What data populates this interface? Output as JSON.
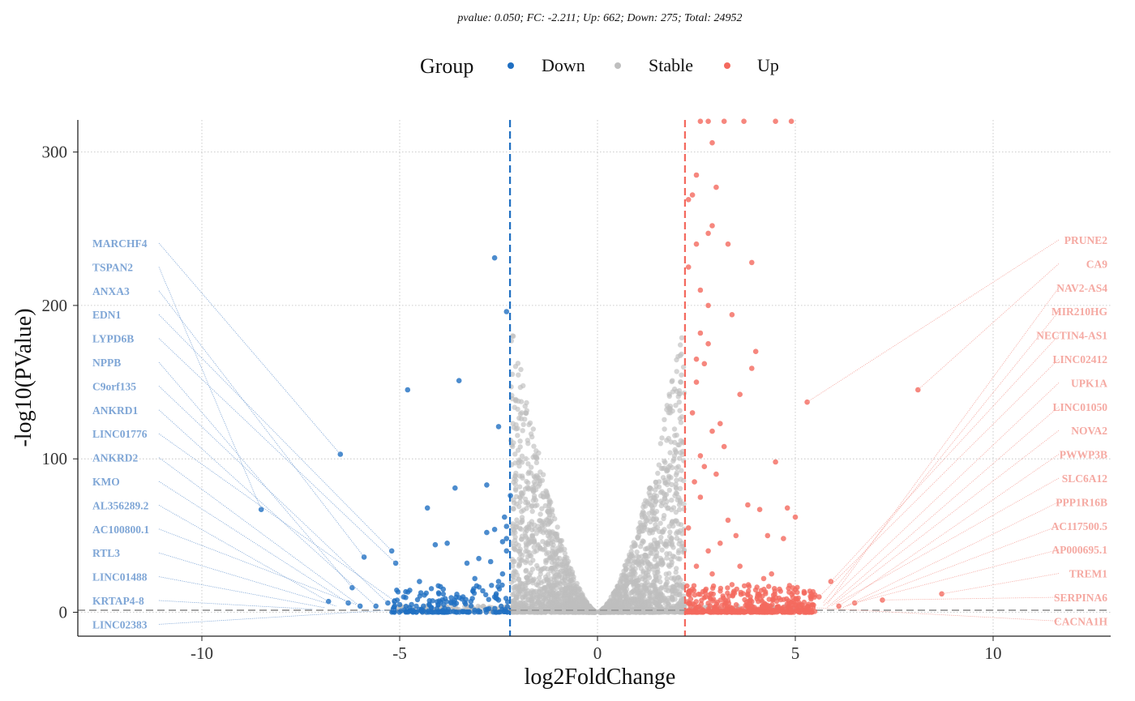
{
  "chart_data": {
    "type": "scatter",
    "subtitle": "pvalue:  0.050; FC: -2.211; Up: 662; Down: 275; Total: 24952",
    "xlabel": "log2FoldChange",
    "ylabel": "-log10(PValue)",
    "xlim": [
      -13.1,
      13.0
    ],
    "ylim": [
      -15,
      320
    ],
    "xticks": [
      -10,
      -5,
      0,
      5,
      10
    ],
    "xtick_labels": [
      "-10",
      "-5",
      "0",
      "5",
      "10"
    ],
    "yticks": [
      0,
      100,
      200,
      300
    ],
    "ytick_labels": [
      "0",
      "100",
      "200",
      "300"
    ],
    "grid": true,
    "legend": {
      "title": "Group",
      "position": "top",
      "entries": [
        {
          "name": "Down",
          "color": "#1f6fc2"
        },
        {
          "name": "Stable",
          "color": "#bfbfbf"
        },
        {
          "name": "Up",
          "color": "#f4695e"
        }
      ]
    },
    "thresholds": {
      "fc_left": -2.211,
      "fc_right": 2.211,
      "fc_line_colors": {
        "left": "#1f6fc2",
        "right": "#f4695e"
      },
      "pvalue_line": 1.301
    },
    "counts": {
      "up": 662,
      "down": 275,
      "total": 24952
    },
    "series": [
      {
        "name": "Down",
        "color": "#1f6fc2",
        "points": [
          [
            -6.5,
            103
          ],
          [
            -8.5,
            67
          ],
          [
            -3.5,
            151
          ],
          [
            -4.8,
            145
          ],
          [
            -2.6,
            231
          ],
          [
            -2.3,
            196
          ],
          [
            -2.5,
            121
          ],
          [
            -3.6,
            81
          ],
          [
            -2.8,
            83
          ],
          [
            -4.3,
            68
          ],
          [
            -5.2,
            40
          ],
          [
            -5.1,
            32
          ],
          [
            -5.9,
            36
          ],
          [
            -6.2,
            16
          ],
          [
            -6.8,
            7
          ],
          [
            -6.3,
            6
          ],
          [
            -3.8,
            45
          ],
          [
            -4.1,
            44
          ],
          [
            -3.3,
            32
          ],
          [
            -2.8,
            52
          ],
          [
            -2.6,
            54
          ],
          [
            -2.4,
            46
          ],
          [
            -2.2,
            76
          ],
          [
            -4.5,
            20
          ],
          [
            -4.9,
            10
          ],
          [
            -3.9,
            15
          ],
          [
            -3.0,
            35
          ],
          [
            -2.7,
            33
          ],
          [
            -2.35,
            62
          ],
          [
            -2.3,
            48
          ],
          [
            -2.3,
            56
          ],
          [
            -5.3,
            6
          ],
          [
            -5.6,
            4
          ],
          [
            -4.7,
            5
          ],
          [
            -4.2,
            3
          ],
          [
            -3.4,
            10
          ],
          [
            -3.1,
            22
          ],
          [
            -2.9,
            14
          ],
          [
            -2.5,
            20
          ],
          [
            -2.6,
            10
          ],
          [
            -6.0,
            4
          ],
          [
            -5.0,
            5
          ],
          [
            -4.4,
            4
          ],
          [
            -3.7,
            6
          ],
          [
            -3.2,
            7
          ],
          [
            -2.4,
            25
          ],
          [
            -2.3,
            40
          ],
          [
            -2.5,
            8
          ]
        ]
      },
      {
        "name": "Up",
        "color": "#f4695e",
        "points": [
          [
            8.1,
            145
          ],
          [
            5.3,
            137
          ],
          [
            8.7,
            12
          ],
          [
            7.2,
            8
          ],
          [
            6.5,
            6
          ],
          [
            5.9,
            20
          ],
          [
            5.6,
            10
          ],
          [
            6.1,
            4
          ],
          [
            3.9,
            228
          ],
          [
            2.9,
            306
          ],
          [
            3.0,
            277
          ],
          [
            2.5,
            285
          ],
          [
            3.3,
            240
          ],
          [
            2.8,
            247
          ],
          [
            2.9,
            252
          ],
          [
            3.4,
            194
          ],
          [
            2.8,
            200
          ],
          [
            4.0,
            170
          ],
          [
            2.8,
            175
          ],
          [
            3.9,
            159
          ],
          [
            4.5,
            98
          ],
          [
            4.8,
            68
          ],
          [
            5.0,
            62
          ],
          [
            3.6,
            142
          ],
          [
            4.1,
            67
          ],
          [
            3.8,
            70
          ],
          [
            3.1,
            123
          ],
          [
            3.5,
            50
          ],
          [
            4.3,
            50
          ],
          [
            4.7,
            48
          ],
          [
            3.0,
            90
          ],
          [
            2.7,
            95
          ],
          [
            2.6,
            102
          ],
          [
            3.2,
            108
          ],
          [
            2.9,
            118
          ],
          [
            2.5,
            165
          ],
          [
            2.5,
            150
          ],
          [
            2.7,
            162
          ],
          [
            2.4,
            130
          ],
          [
            2.3,
            225
          ],
          [
            2.6,
            210
          ],
          [
            2.3,
            269
          ],
          [
            2.5,
            240
          ],
          [
            2.4,
            272
          ],
          [
            2.6,
            182
          ],
          [
            2.6,
            320
          ],
          [
            2.8,
            320
          ],
          [
            3.2,
            320
          ],
          [
            3.7,
            320
          ],
          [
            4.5,
            320
          ],
          [
            4.9,
            320
          ],
          [
            3.1,
            45
          ],
          [
            2.5,
            30
          ],
          [
            2.9,
            25
          ],
          [
            3.4,
            18
          ],
          [
            4.2,
            22
          ],
          [
            4.6,
            15
          ],
          [
            3.8,
            12
          ],
          [
            2.4,
            15
          ],
          [
            2.8,
            40
          ],
          [
            3.3,
            60
          ],
          [
            2.6,
            75
          ],
          [
            2.45,
            85
          ],
          [
            3.6,
            30
          ],
          [
            4.4,
            25
          ],
          [
            2.3,
            55
          ]
        ]
      }
    ],
    "annotations_left": [
      {
        "label": "MARCHF4",
        "point": [
          -6.5,
          103
        ]
      },
      {
        "label": "TSPAN2",
        "point": [
          -8.5,
          67
        ]
      },
      {
        "label": "ANXA3",
        "point": [
          -5.9,
          36
        ]
      },
      {
        "label": "EDN1",
        "point": [
          -5.2,
          40
        ]
      },
      {
        "label": "LYPD6B",
        "point": [
          -5.1,
          32
        ]
      },
      {
        "label": "NPPB",
        "point": [
          -6.2,
          16
        ]
      },
      {
        "label": "C9orf135",
        "point": [
          -5.3,
          6
        ]
      },
      {
        "label": "ANKRD1",
        "point": [
          -5.6,
          4
        ]
      },
      {
        "label": "LINC01776",
        "point": [
          -5.0,
          5
        ]
      },
      {
        "label": "ANKRD2",
        "point": [
          -6.0,
          4
        ]
      },
      {
        "label": "KMO",
        "point": [
          -6.3,
          6
        ]
      },
      {
        "label": "AL356289.2",
        "point": [
          -6.8,
          7
        ]
      },
      {
        "label": "AC100800.1",
        "point": [
          -6.1,
          5
        ]
      },
      {
        "label": "RTL3",
        "point": [
          -6.6,
          4
        ]
      },
      {
        "label": "LINC01488",
        "point": [
          -6.9,
          3
        ]
      },
      {
        "label": "KRTAP4-8",
        "point": [
          -7.2,
          2
        ]
      },
      {
        "label": "LINC02383",
        "point": [
          -4.9,
          2
        ]
      }
    ],
    "annotations_right": [
      {
        "label": "PRUNE2",
        "point": [
          5.3,
          137
        ]
      },
      {
        "label": "CA9",
        "point": [
          8.1,
          145
        ]
      },
      {
        "label": "NAV2-AS4",
        "point": [
          5.8,
          5
        ]
      },
      {
        "label": "MIR210HG",
        "point": [
          5.7,
          6
        ]
      },
      {
        "label": "NECTIN4-AS1",
        "point": [
          5.9,
          20
        ]
      },
      {
        "label": "LINC02412",
        "point": [
          5.6,
          10
        ]
      },
      {
        "label": "UPK1A",
        "point": [
          5.7,
          4
        ]
      },
      {
        "label": "LINC01050",
        "point": [
          5.8,
          3
        ]
      },
      {
        "label": "NOVA2",
        "point": [
          5.9,
          4
        ]
      },
      {
        "label": "PWWP3B",
        "point": [
          6.1,
          4
        ]
      },
      {
        "label": "SLC6A12",
        "point": [
          6.0,
          5
        ]
      },
      {
        "label": "PPP1R16B",
        "point": [
          6.2,
          3
        ]
      },
      {
        "label": "AC117500.5",
        "point": [
          6.3,
          4
        ]
      },
      {
        "label": "AP000695.1",
        "point": [
          6.5,
          6
        ]
      },
      {
        "label": "TREM1",
        "point": [
          8.7,
          12
        ]
      },
      {
        "label": "SERPINA6",
        "point": [
          7.2,
          8
        ]
      },
      {
        "label": "CACNA1H",
        "point": [
          5.4,
          3
        ]
      }
    ]
  }
}
